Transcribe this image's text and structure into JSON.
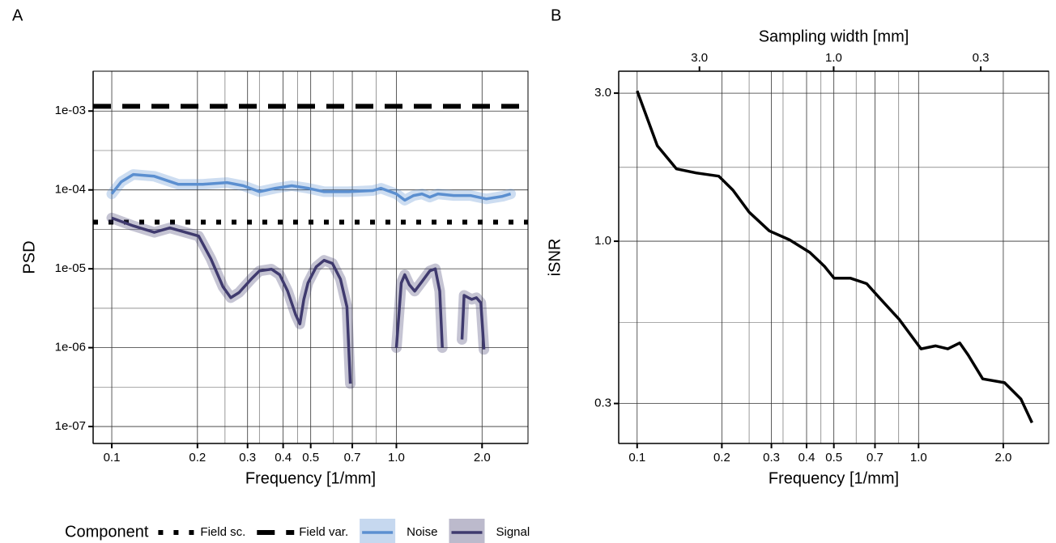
{
  "chart_data": [
    {
      "type": "line",
      "panel_label": "A",
      "xlabel": "Frequency [1/mm]",
      "ylabel": "PSD",
      "xscale": "log",
      "yscale": "log",
      "xlim": [
        0.086,
        2.9
      ],
      "ylim": [
        6.1e-08,
        0.0032
      ],
      "xticks": [
        0.1,
        0.2,
        0.3,
        0.4,
        0.5,
        0.7,
        {
          "value": 1,
          "label": "1.0"
        },
        {
          "value": 2,
          "label": "2.0"
        }
      ],
      "minor_xticks": [
        0.25,
        0.33,
        0.45,
        0.6,
        0.85
      ],
      "yticks": [
        {
          "value": 1e-07,
          "label": "1e-07"
        },
        {
          "value": 1e-06,
          "label": "1e-06"
        },
        {
          "value": 1e-05,
          "label": "1e-05"
        },
        {
          "value": 0.0001,
          "label": "1e-04"
        },
        {
          "value": 0.001,
          "label": "1e-03"
        }
      ],
      "minor_yticks": [
        3.16e-07,
        3.16e-06,
        3.16e-05,
        0.000316
      ],
      "grid": true,
      "legend_title": "Component",
      "legend_position": "bottom",
      "hlines": [
        {
          "name": "Field sc.",
          "value": 3.9e-05,
          "color": "#000000",
          "style": "dotted"
        },
        {
          "name": "Field var.",
          "value": 0.00115,
          "color": "#000000",
          "style": "dashed"
        }
      ],
      "series": [
        {
          "name": "Noise",
          "color": "#5b8fd0",
          "band": true,
          "x": [
            0.1,
            0.108,
            0.119,
            0.141,
            0.171,
            0.209,
            0.254,
            0.29,
            0.33,
            0.376,
            0.429,
            0.489,
            0.557,
            0.679,
            0.827,
            0.883,
            1.0,
            1.07,
            1.15,
            1.23,
            1.31,
            1.4,
            1.59,
            1.82,
            2.07,
            2.36,
            2.52
          ],
          "values": [
            8.9e-05,
            0.000127,
            0.000157,
            0.000149,
            0.000118,
            0.000118,
            0.000124,
            0.000113,
            9.5e-05,
            0.000105,
            0.000113,
            0.000105,
            9.5e-05,
            9.5e-05,
            9.8e-05,
            0.000105,
            8.9e-05,
            7.4e-05,
            8.5e-05,
            8.9e-05,
            8.1e-05,
            8.9e-05,
            8.5e-05,
            8.5e-05,
            7.7e-05,
            8.3e-05,
            8.9e-05
          ]
        },
        {
          "name": "Signal",
          "color": "#3f3a6e",
          "band": true,
          "x": [
            0.1,
            0.119,
            0.141,
            0.16,
            0.202,
            0.223,
            0.246,
            0.262,
            0.28,
            0.309,
            0.33,
            0.364,
            0.389,
            0.415,
            0.443,
            0.458,
            0.473,
            0.489,
            0.523,
            0.557,
            0.596,
            0.636,
            0.67,
            0.689,
            null,
            1.0,
            1.04,
            1.07,
            1.11,
            1.16,
            1.23,
            1.31,
            1.37,
            1.42,
            1.45,
            null,
            1.7,
            1.73,
            1.79,
            1.84,
            1.91,
            1.98,
            2.03
          ],
          "values": [
            4.4e-05,
            3.5e-05,
            2.9e-05,
            3.3e-05,
            2.6e-05,
            1.34e-05,
            5.9e-06,
            4.3e-06,
            5e-06,
            7.4e-06,
            9.4e-06,
            9.9e-06,
            8.4e-06,
            5.2e-06,
            2.6e-06,
            2e-06,
            4.1e-06,
            6.6e-06,
            1.06e-05,
            1.28e-05,
            1.17e-05,
            7.4e-06,
            3.3e-06,
            3.5e-07,
            null,
            1e-06,
            6.6e-06,
            8.4e-06,
            6.3e-06,
            5.2e-06,
            6.9e-06,
            9.4e-06,
            1e-05,
            5.2e-06,
            1e-06,
            null,
            1.27e-06,
            4.6e-06,
            4.3e-06,
            4.1e-06,
            4.3e-06,
            3.7e-06,
            9.5e-07
          ]
        }
      ]
    },
    {
      "type": "line",
      "panel_label": "B",
      "xlabel": "Frequency [1/mm]",
      "ylabel": "iSNR",
      "x2label": "Sampling width [mm]",
      "xscale": "log",
      "yscale": "log",
      "xlim": [
        0.086,
        2.9
      ],
      "ylim": [
        0.223,
        3.53
      ],
      "x2lim": [
        5.81,
        0.172
      ],
      "xticks": [
        0.1,
        0.2,
        0.3,
        0.4,
        0.5,
        0.7,
        {
          "value": 1,
          "label": "1.0"
        },
        {
          "value": 2,
          "label": "2.0"
        }
      ],
      "minor_xticks": [
        0.25,
        0.33,
        0.45,
        0.6,
        0.85
      ],
      "x2ticks": [
        {
          "value": 3,
          "label": "3.0"
        },
        {
          "value": 1,
          "label": "1.0"
        },
        0.3
      ],
      "yticks": [
        0.3,
        {
          "value": 1,
          "label": "1.0"
        },
        {
          "value": 3,
          "label": "3.0"
        }
      ],
      "minor_yticks": [
        0.548,
        1.73
      ],
      "grid": true,
      "series": [
        {
          "name": "iSNR",
          "color": "#000000",
          "x": [
            0.1,
            0.118,
            0.138,
            0.162,
            0.195,
            0.219,
            0.25,
            0.295,
            0.348,
            0.411,
            0.463,
            0.501,
            0.573,
            0.654,
            0.723,
            0.853,
            1.02,
            1.15,
            1.27,
            1.4,
            1.5,
            1.69,
            2.02,
            2.31,
            2.53
          ],
          "values": [
            3.05,
            2.03,
            1.71,
            1.66,
            1.62,
            1.46,
            1.24,
            1.08,
            1.01,
            0.92,
            0.83,
            0.76,
            0.76,
            0.73,
            0.66,
            0.56,
            0.45,
            0.46,
            0.45,
            0.47,
            0.43,
            0.36,
            0.35,
            0.31,
            0.26
          ]
        }
      ]
    }
  ]
}
